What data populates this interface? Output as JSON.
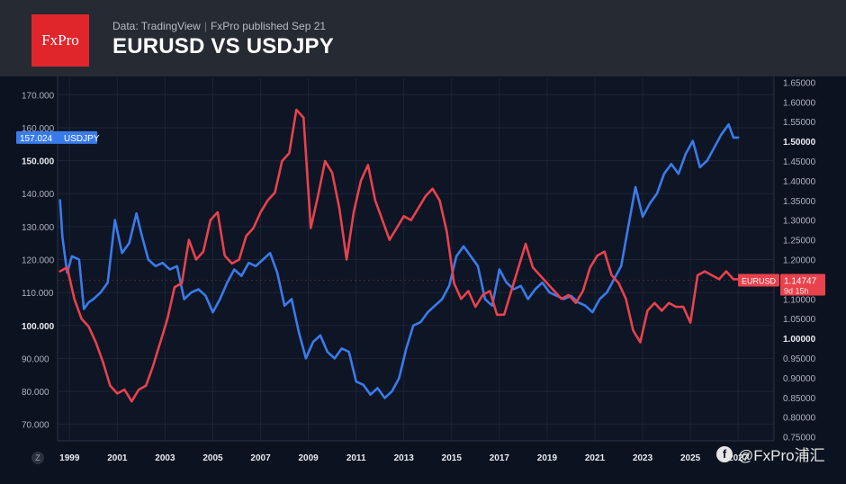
{
  "header": {
    "logo_text": "FxPro",
    "source": "Data: TradingView",
    "published": "FxPro published Sep 21",
    "title": "EURUSD VS USDJPY"
  },
  "watermark": {
    "text": "@FxPro浦汇"
  },
  "z_badge": "Z",
  "chart_data": {
    "type": "line",
    "title": "EURUSD VS USDJPY",
    "xlim": [
      1998.5,
      2028.5
    ],
    "x_ticks": [
      "1999",
      "2001",
      "2003",
      "2005",
      "2007",
      "2009",
      "2011",
      "2013",
      "2015",
      "2017",
      "2019",
      "2021",
      "2023",
      "2025",
      "2027"
    ],
    "left_axis": {
      "ylim": [
        65,
        175
      ],
      "ticks": [
        "70.000",
        "80.000",
        "90.000",
        "100.000",
        "110.000",
        "120.000",
        "130.000",
        "140.000",
        "150.000",
        "160.000",
        "170.000"
      ],
      "bold_ticks": [
        "100.000",
        "150.000"
      ]
    },
    "right_axis": {
      "ylim": [
        0.74,
        1.66
      ],
      "ticks": [
        "0.75000",
        "0.80000",
        "0.85000",
        "0.90000",
        "0.95000",
        "1.00000",
        "1.05000",
        "1.10000",
        "1.15000",
        "1.20000",
        "1.25000",
        "1.30000",
        "1.35000",
        "1.40000",
        "1.45000",
        "1.50000",
        "1.55000",
        "1.60000",
        "1.65000"
      ],
      "bold_ticks": [
        "1.00000",
        "1.50000"
      ]
    },
    "grid": true,
    "series": [
      {
        "name": "USDJPY",
        "axis": "left",
        "color": "#3a7bea",
        "label": "157.024",
        "x": [
          1998.6,
          1998.7,
          1998.9,
          1999.1,
          1999.4,
          1999.6,
          1999.8,
          2000.0,
          2000.3,
          2000.6,
          2000.9,
          2001.2,
          2001.5,
          2001.8,
          2002.0,
          2002.3,
          2002.6,
          2002.9,
          2003.2,
          2003.5,
          2003.8,
          2004.1,
          2004.4,
          2004.7,
          2005.0,
          2005.3,
          2005.6,
          2005.9,
          2006.2,
          2006.5,
          2006.8,
          2007.1,
          2007.4,
          2007.7,
          2008.0,
          2008.3,
          2008.6,
          2008.9,
          2009.2,
          2009.5,
          2009.8,
          2010.1,
          2010.4,
          2010.7,
          2011.0,
          2011.3,
          2011.6,
          2011.9,
          2012.2,
          2012.5,
          2012.8,
          2013.1,
          2013.4,
          2013.7,
          2014.0,
          2014.3,
          2014.6,
          2014.9,
          2015.2,
          2015.5,
          2015.8,
          2016.1,
          2016.4,
          2016.7,
          2017.0,
          2017.3,
          2017.6,
          2017.9,
          2018.2,
          2018.5,
          2018.8,
          2019.1,
          2019.4,
          2019.7,
          2020.0,
          2020.3,
          2020.6,
          2020.9,
          2021.2,
          2021.5,
          2021.8,
          2022.1,
          2022.4,
          2022.7,
          2023.0,
          2023.3,
          2023.6,
          2023.9,
          2024.2,
          2024.5,
          2024.8,
          2025.1,
          2025.4,
          2025.7,
          2026.0,
          2026.3,
          2026.6,
          2026.8,
          2027.0
        ],
        "values": [
          138,
          127,
          116,
          121,
          120,
          105,
          107,
          108,
          110,
          113,
          132,
          122,
          125,
          134,
          128,
          120,
          118,
          119,
          117,
          118,
          108,
          110,
          111,
          109,
          104,
          108,
          113,
          117,
          115,
          119,
          118,
          120,
          122,
          116,
          106,
          108,
          98,
          90,
          95,
          97,
          92,
          90,
          93,
          92,
          83,
          82,
          79,
          81,
          78,
          80,
          84,
          93,
          100,
          101,
          104,
          106,
          108,
          112,
          121,
          124,
          121,
          118,
          108,
          106,
          117,
          113,
          111,
          112,
          108,
          111,
          113,
          110,
          109,
          108,
          109,
          107,
          106,
          104,
          108,
          110,
          114,
          118,
          130,
          142,
          133,
          137,
          140,
          146,
          149,
          146,
          152,
          156,
          148,
          150,
          154,
          158,
          161,
          157,
          157
        ]
      },
      {
        "name": "EURUSD",
        "axis": "right",
        "color": "#e8424d",
        "label": "1.14747",
        "countdown": "9d 15h",
        "x": [
          1998.6,
          1998.9,
          1999.2,
          1999.5,
          1999.8,
          2000.1,
          2000.4,
          2000.7,
          2001.0,
          2001.3,
          2001.6,
          2001.9,
          2002.2,
          2002.5,
          2002.8,
          2003.1,
          2003.4,
          2003.7,
          2004.0,
          2004.3,
          2004.6,
          2004.9,
          2005.2,
          2005.5,
          2005.8,
          2006.1,
          2006.4,
          2006.7,
          2007.0,
          2007.3,
          2007.6,
          2007.9,
          2008.2,
          2008.5,
          2008.8,
          2009.1,
          2009.4,
          2009.7,
          2010.0,
          2010.3,
          2010.6,
          2010.9,
          2011.2,
          2011.5,
          2011.8,
          2012.1,
          2012.4,
          2012.7,
          2013.0,
          2013.3,
          2013.6,
          2013.9,
          2014.2,
          2014.5,
          2014.8,
          2015.1,
          2015.4,
          2015.7,
          2016.0,
          2016.3,
          2016.6,
          2016.9,
          2017.2,
          2017.5,
          2017.8,
          2018.1,
          2018.4,
          2018.7,
          2019.0,
          2019.3,
          2019.6,
          2019.9,
          2020.2,
          2020.5,
          2020.8,
          2021.1,
          2021.4,
          2021.7,
          2022.0,
          2022.3,
          2022.6,
          2022.9,
          2023.2,
          2023.5,
          2023.8,
          2024.1,
          2024.4,
          2024.7,
          2025.0,
          2025.3,
          2025.6,
          2025.9,
          2026.2,
          2026.5,
          2026.8,
          2027.0
        ],
        "values": [
          1.17,
          1.18,
          1.1,
          1.05,
          1.03,
          0.99,
          0.94,
          0.88,
          0.86,
          0.87,
          0.84,
          0.87,
          0.88,
          0.93,
          0.99,
          1.05,
          1.13,
          1.14,
          1.25,
          1.2,
          1.22,
          1.3,
          1.32,
          1.21,
          1.19,
          1.2,
          1.26,
          1.28,
          1.32,
          1.35,
          1.37,
          1.45,
          1.47,
          1.58,
          1.56,
          1.28,
          1.36,
          1.45,
          1.42,
          1.33,
          1.2,
          1.32,
          1.4,
          1.44,
          1.35,
          1.3,
          1.25,
          1.28,
          1.31,
          1.3,
          1.33,
          1.36,
          1.38,
          1.35,
          1.27,
          1.14,
          1.1,
          1.12,
          1.08,
          1.11,
          1.12,
          1.06,
          1.06,
          1.12,
          1.18,
          1.24,
          1.18,
          1.16,
          1.14,
          1.12,
          1.1,
          1.11,
          1.09,
          1.12,
          1.18,
          1.21,
          1.22,
          1.16,
          1.14,
          1.1,
          1.02,
          0.99,
          1.07,
          1.09,
          1.07,
          1.09,
          1.08,
          1.08,
          1.04,
          1.16,
          1.17,
          1.16,
          1.15,
          1.17,
          1.15,
          1.15
        ]
      }
    ]
  }
}
